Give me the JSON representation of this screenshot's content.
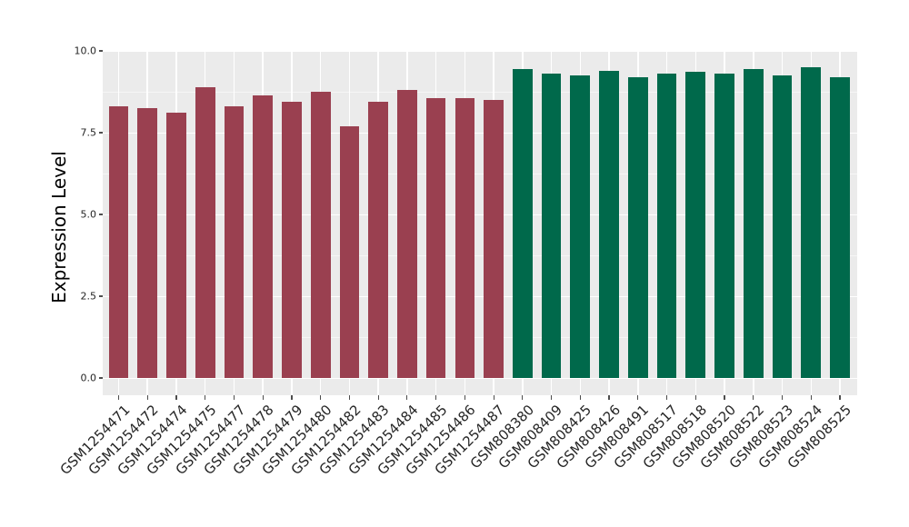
{
  "chart_data": {
    "type": "bar",
    "title": "",
    "ylabel": "Expression Level",
    "xlabel": "",
    "ylim": [
      0,
      10
    ],
    "grid": true,
    "legend": false,
    "panel_bg": "#EBEBEB",
    "grid_color": "#FFFFFF",
    "yticks": [
      {
        "label": "0.0",
        "value": 0
      },
      {
        "label": "2.5",
        "value": 2.5
      },
      {
        "label": "5.0",
        "value": 5
      },
      {
        "label": "7.5",
        "value": 7.5
      },
      {
        "label": "10.0",
        "value": 10
      }
    ],
    "y_minor_ticks": [
      1.25,
      3.75,
      6.25,
      8.75
    ],
    "series": [
      {
        "color": "#9A4050",
        "categories": [
          "GSM1254471",
          "GSM1254472",
          "GSM1254474",
          "GSM1254475",
          "GSM1254477",
          "GSM1254478",
          "GSM1254479",
          "GSM1254480",
          "GSM1254482",
          "GSM1254483",
          "GSM1254484",
          "GSM1254485",
          "GSM1254486",
          "GSM1254487"
        ],
        "values": [
          8.3,
          8.25,
          8.1,
          8.9,
          8.3,
          8.65,
          8.45,
          8.75,
          7.7,
          8.45,
          8.8,
          8.55,
          8.55,
          8.5
        ]
      },
      {
        "color": "#00694B",
        "categories": [
          "GSM808380",
          "GSM808409",
          "GSM808425",
          "GSM808426",
          "GSM808491",
          "GSM808517",
          "GSM808518",
          "GSM808520",
          "GSM808522",
          "GSM808523",
          "GSM808524",
          "GSM808525"
        ],
        "values": [
          9.45,
          9.3,
          9.25,
          9.4,
          9.2,
          9.3,
          9.35,
          9.3,
          9.45,
          9.25,
          9.5,
          9.2
        ]
      }
    ]
  }
}
